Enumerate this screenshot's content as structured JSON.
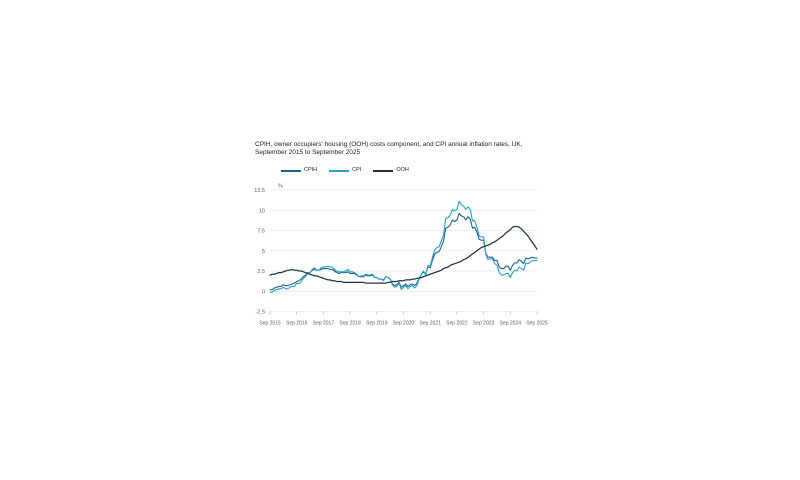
{
  "page": {
    "background": "#ffffff",
    "text_color": "#222222",
    "axis_text_color": "#595959",
    "gridline_color": "#e8e8e8"
  },
  "chart": {
    "title": "CPIH, owner occupiers' housing (OOH) costs component, and CPI annual inflation rates, UK, September 2015 to September 2025",
    "unit_label": "%"
  },
  "chart_data": {
    "type": "line",
    "title": "CPIH, owner occupiers' housing (OOH) costs component, and CPI annual inflation rates, UK, September 2015 to September 2025",
    "xlabel": "",
    "ylabel": "%",
    "ylim": [
      -2.5,
      12.5
    ],
    "ytick_labels": [
      "12.5",
      "10",
      "7.5",
      "5",
      "2.5",
      "0",
      "-2.5"
    ],
    "yticks": [
      12.5,
      10,
      7.5,
      5,
      2.5,
      0,
      -2.5
    ],
    "x_interval": "monthly",
    "x_tick_labels": [
      "Sep 2015",
      "Sep 2016",
      "Sep 2017",
      "Sep 2018",
      "Sep 2019",
      "Sep 2020",
      "Sep 2021",
      "Sep 2022",
      "Sep 2023",
      "Sep 2024",
      "Sep 2025"
    ],
    "grid": "horizontal",
    "legend_position": "top",
    "series": [
      {
        "name": "CPIH",
        "color": "#206095",
        "values": [
          0.2,
          0.2,
          0.4,
          0.5,
          0.6,
          0.6,
          0.8,
          0.7,
          0.7,
          0.8,
          0.9,
          1.0,
          1.2,
          1.3,
          1.5,
          1.8,
          2.0,
          2.3,
          2.3,
          2.6,
          2.7,
          2.6,
          2.6,
          2.7,
          2.8,
          2.8,
          2.8,
          2.7,
          2.7,
          2.5,
          2.3,
          2.2,
          2.3,
          2.3,
          2.3,
          2.4,
          2.2,
          2.2,
          2.2,
          2.0,
          1.8,
          1.8,
          1.8,
          2.0,
          1.9,
          1.9,
          2.0,
          1.7,
          1.7,
          1.5,
          1.5,
          1.4,
          1.8,
          1.7,
          1.5,
          0.9,
          0.7,
          0.8,
          1.1,
          0.5,
          0.7,
          0.9,
          0.6,
          0.8,
          0.9,
          0.7,
          1.0,
          1.6,
          2.1,
          2.4,
          2.1,
          3.0,
          2.9,
          3.8,
          4.6,
          4.8,
          4.9,
          5.5,
          6.2,
          7.8,
          7.9,
          8.2,
          8.8,
          8.6,
          8.8,
          9.6,
          9.3,
          9.2,
          8.8,
          9.2,
          8.9,
          7.8,
          7.9,
          7.3,
          6.4,
          6.3,
          6.3,
          4.7,
          4.2,
          4.2,
          4.2,
          3.8,
          3.8,
          3.0,
          2.8,
          2.8,
          3.1,
          3.1,
          2.6,
          3.2,
          3.5,
          3.5,
          3.9,
          3.7,
          3.4,
          4.1,
          4.0,
          4.1,
          4.2,
          4.1,
          4.1
        ]
      },
      {
        "name": "CPI",
        "color": "#27a0cc",
        "values": [
          -0.1,
          -0.1,
          0.1,
          0.2,
          0.3,
          0.3,
          0.5,
          0.3,
          0.3,
          0.5,
          0.6,
          0.6,
          1.0,
          0.9,
          1.2,
          1.6,
          1.8,
          2.3,
          2.3,
          2.7,
          2.9,
          2.6,
          2.6,
          2.9,
          3.0,
          3.0,
          3.1,
          3.0,
          3.0,
          2.7,
          2.5,
          2.4,
          2.4,
          2.4,
          2.5,
          2.7,
          2.4,
          2.4,
          2.3,
          2.1,
          1.8,
          1.9,
          1.9,
          2.1,
          2.0,
          2.0,
          2.1,
          1.7,
          1.7,
          1.5,
          1.5,
          1.3,
          1.8,
          1.7,
          1.5,
          0.8,
          0.5,
          0.6,
          1.0,
          0.2,
          0.5,
          0.7,
          0.3,
          0.6,
          0.7,
          0.4,
          0.7,
          1.5,
          2.1,
          2.5,
          2.0,
          3.2,
          3.1,
          4.2,
          5.1,
          5.4,
          5.5,
          6.2,
          7.0,
          9.0,
          9.1,
          9.4,
          10.1,
          9.9,
          10.1,
          11.1,
          10.7,
          10.5,
          10.1,
          10.4,
          10.1,
          8.7,
          8.7,
          7.9,
          6.8,
          6.7,
          6.7,
          4.6,
          3.9,
          4.0,
          4.0,
          3.4,
          3.2,
          2.3,
          2.0,
          2.0,
          2.2,
          2.2,
          1.7,
          2.3,
          2.6,
          2.5,
          3.0,
          2.8,
          2.6,
          3.5,
          3.4,
          3.6,
          3.8,
          3.8,
          3.8
        ]
      },
      {
        "name": "OOH",
        "color": "#233240",
        "values": [
          2.0,
          2.1,
          2.1,
          2.2,
          2.3,
          2.3,
          2.4,
          2.5,
          2.6,
          2.6,
          2.7,
          2.6,
          2.6,
          2.5,
          2.5,
          2.4,
          2.3,
          2.2,
          2.1,
          2.0,
          1.9,
          1.9,
          1.8,
          1.7,
          1.6,
          1.5,
          1.4,
          1.4,
          1.3,
          1.3,
          1.2,
          1.2,
          1.2,
          1.1,
          1.1,
          1.1,
          1.1,
          1.1,
          1.1,
          1.1,
          1.1,
          1.1,
          1.1,
          1.0,
          1.0,
          1.0,
          1.0,
          1.0,
          1.0,
          1.0,
          1.0,
          1.0,
          1.0,
          1.1,
          1.1,
          1.2,
          1.2,
          1.2,
          1.3,
          1.3,
          1.3,
          1.4,
          1.4,
          1.4,
          1.5,
          1.5,
          1.6,
          1.6,
          1.7,
          1.8,
          1.9,
          2.0,
          2.1,
          2.2,
          2.3,
          2.4,
          2.5,
          2.6,
          2.8,
          2.9,
          3.0,
          3.2,
          3.3,
          3.4,
          3.5,
          3.6,
          3.7,
          3.9,
          4.0,
          4.2,
          4.4,
          4.6,
          4.8,
          5.0,
          5.2,
          5.4,
          5.5,
          5.6,
          5.7,
          5.8,
          6.0,
          6.1,
          6.3,
          6.5,
          6.7,
          6.9,
          7.2,
          7.4,
          7.6,
          7.9,
          8.0,
          8.0,
          7.9,
          7.7,
          7.4,
          7.1,
          6.8,
          6.4,
          6.0,
          5.6,
          5.2
        ]
      }
    ]
  }
}
